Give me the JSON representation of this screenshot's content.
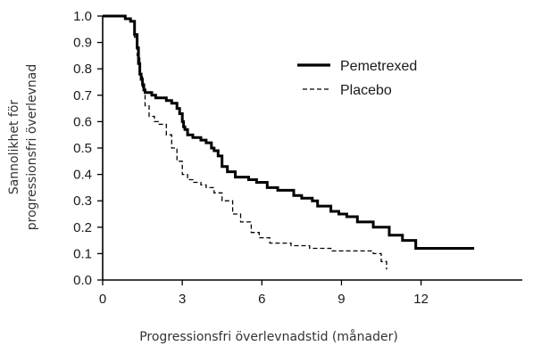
{
  "chart_data": {
    "type": "line",
    "step": true,
    "xlabel": "Progressionsfri överlevnadstid (månader)",
    "ylabel": [
      "Sannolikhet för",
      "progressionsfri överlevnad"
    ],
    "xlim": [
      0,
      14.2
    ],
    "ylim": [
      0,
      1.0
    ],
    "xticks": [
      0,
      3,
      6,
      9,
      12
    ],
    "xtick_labels": [
      "0",
      "3",
      "6",
      "9",
      "12"
    ],
    "yticks": [
      0,
      0.1,
      0.2,
      0.3,
      0.4,
      0.5,
      0.6,
      0.7,
      0.8,
      0.9,
      1.0
    ],
    "ytick_labels": [
      "0.0",
      "0.1",
      "0.2",
      "0.3",
      "0.4",
      "0.5",
      "0.6",
      "0.7",
      "0.8",
      "0.9",
      "1.0"
    ],
    "grid": false,
    "legend_position": "top-right",
    "series": [
      {
        "name": "Pemetrexed",
        "style": "solid",
        "color": "#000000",
        "x": [
          0,
          0.85,
          1.05,
          1.2,
          1.3,
          1.35,
          1.4,
          1.45,
          1.5,
          1.55,
          1.6,
          1.7,
          1.85,
          2.0,
          2.2,
          2.4,
          2.6,
          2.8,
          2.9,
          3.0,
          3.05,
          3.1,
          3.2,
          3.4,
          3.7,
          3.9,
          4.1,
          4.2,
          4.35,
          4.5,
          4.7,
          5.0,
          5.5,
          5.8,
          6.2,
          6.6,
          7.2,
          7.5,
          7.9,
          8.1,
          8.6,
          8.9,
          9.2,
          9.6,
          10.2,
          10.8,
          11.3,
          11.8,
          14.0
        ],
        "y": [
          1.0,
          0.99,
          0.98,
          0.93,
          0.88,
          0.82,
          0.78,
          0.76,
          0.74,
          0.72,
          0.71,
          0.71,
          0.7,
          0.69,
          0.69,
          0.68,
          0.67,
          0.65,
          0.63,
          0.6,
          0.58,
          0.57,
          0.55,
          0.54,
          0.53,
          0.52,
          0.5,
          0.49,
          0.47,
          0.43,
          0.41,
          0.39,
          0.38,
          0.37,
          0.35,
          0.34,
          0.32,
          0.31,
          0.3,
          0.28,
          0.26,
          0.25,
          0.24,
          0.22,
          0.2,
          0.17,
          0.15,
          0.12,
          0.12
        ]
      },
      {
        "name": "Placebo",
        "style": "dashed",
        "color": "#000000",
        "x": [
          0,
          0.85,
          1.05,
          1.2,
          1.3,
          1.4,
          1.5,
          1.6,
          1.75,
          1.95,
          2.1,
          2.4,
          2.6,
          2.8,
          3.0,
          3.2,
          3.4,
          3.7,
          3.9,
          4.2,
          4.5,
          4.9,
          5.2,
          5.6,
          5.9,
          6.3,
          7.1,
          7.8,
          8.6,
          9.4,
          10.2,
          10.5,
          10.7
        ],
        "y": [
          1.0,
          0.99,
          0.98,
          0.92,
          0.85,
          0.78,
          0.72,
          0.66,
          0.62,
          0.6,
          0.59,
          0.55,
          0.5,
          0.45,
          0.4,
          0.38,
          0.37,
          0.36,
          0.35,
          0.33,
          0.3,
          0.25,
          0.22,
          0.18,
          0.16,
          0.14,
          0.13,
          0.12,
          0.11,
          0.11,
          0.1,
          0.07,
          0.04
        ]
      }
    ]
  }
}
